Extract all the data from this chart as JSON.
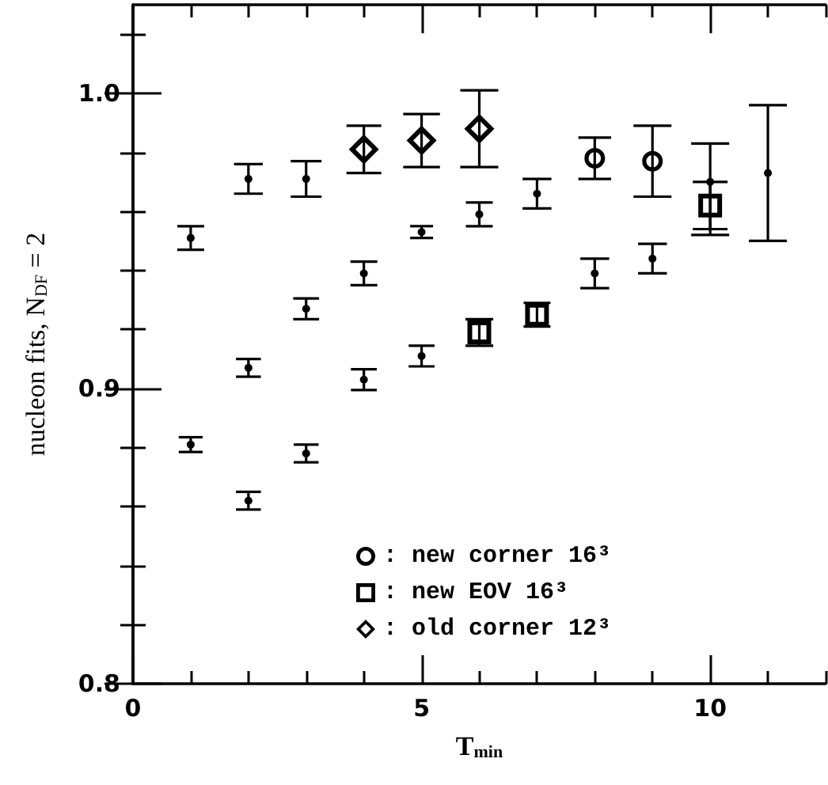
{
  "chart_data": {
    "type": "scatter",
    "xlabel": "T$_{min}$",
    "ylabel": "nucleon fits, N$_{DF}$ = 2",
    "xlim": [
      0,
      12
    ],
    "xticks": [
      0,
      {
        "value": 1,
        "label": null
      },
      {
        "value": 2,
        "label": null
      },
      {
        "value": 3,
        "label": null
      },
      {
        "value": 4,
        "label": null
      },
      5,
      {
        "value": 6,
        "label": null
      },
      {
        "value": 7,
        "label": null
      },
      {
        "value": 8,
        "label": null
      },
      {
        "value": 9,
        "label": null
      },
      10,
      {
        "value": 11,
        "label": null
      },
      {
        "value": 12,
        "label": null
      }
    ],
    "ylim": [
      0.8,
      1.03
    ],
    "yticks": [
      0.8,
      {
        "value": 0.82,
        "label": null
      },
      {
        "value": 0.84,
        "label": null
      },
      {
        "value": 0.86,
        "label": null
      },
      {
        "value": 0.88,
        "label": null
      },
      0.9,
      {
        "value": 0.92,
        "label": null
      },
      {
        "value": 0.94,
        "label": null
      },
      {
        "value": 0.96,
        "label": null
      },
      {
        "value": 0.98,
        "label": null
      },
      {
        "value": 1,
        "label": "1.0"
      },
      {
        "value": 1.02,
        "label": null
      }
    ],
    "grid": false,
    "legend": "bottom",
    "series": [
      {
        "color": "#000000",
        "marker": "circle",
        "x": [
          1,
          2,
          3,
          4,
          5,
          6,
          7,
          8,
          9,
          10,
          11
        ],
        "values": [
          0.951,
          0.971,
          0.971,
          0.939,
          0.953,
          0.959,
          0.966,
          0.939,
          0.944,
          0.97,
          0.973
        ],
        "errors": [
          0.004,
          0.005,
          0.006,
          0.004,
          0.002,
          0.004,
          0.005,
          0.005,
          0.005,
          [
            0.952,
            0.983
          ],
          0.023
        ]
      },
      {
        "color": "#000000",
        "marker": "circle",
        "x": [
          1,
          2,
          2,
          3,
          3,
          4,
          5
        ],
        "values": [
          0.881,
          0.907,
          0.862,
          0.878,
          0.927,
          0.903,
          0.911
        ],
        "errors": [
          0.0025,
          0.003,
          0.003,
          0.003,
          0.0035,
          0.0035,
          0.0035
        ]
      },
      {
        "name": ": new corner 16³",
        "color": "#000000",
        "marker": "circle",
        "x": [
          8,
          9
        ],
        "values": [
          0.978,
          0.977
        ],
        "errors": [
          0.007,
          0.012
        ]
      },
      {
        "name": ": new EOV 16³",
        "color": "#000000",
        "marker": "square",
        "x": [
          6,
          7,
          10
        ],
        "values": [
          0.919,
          0.925,
          0.962
        ],
        "errors": [
          0.0045,
          0.004,
          0.008
        ]
      },
      {
        "name": ": old corner 12³",
        "color": "#000000",
        "marker": "diamond",
        "x": [
          4,
          5,
          6
        ],
        "values": [
          0.981,
          0.984,
          0.988
        ],
        "errors": [
          0.008,
          0.009,
          0.013
        ]
      }
    ]
  }
}
